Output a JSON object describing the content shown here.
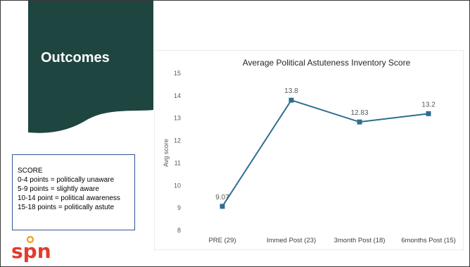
{
  "slide": {
    "title": "Outcomes",
    "colors": {
      "banner": "#1f4540",
      "line": "#2e6e8e",
      "box_border": "#2f5597",
      "logo_red": "#e23b2e",
      "logo_orange": "#f29f1e"
    }
  },
  "score_legend": {
    "heading": "SCORE",
    "lines": [
      "0-4 points = politically unaware",
      "5-9 points = slightly aware",
      "10-14 point = political awareness",
      "15-18 points = politically astute"
    ]
  },
  "logo": {
    "text": "spn",
    "icon": "spn-logo-icon"
  },
  "chart_data": {
    "type": "line",
    "title": "Average Political Astuteness Inventory Score",
    "xlabel": "",
    "ylabel": "Avg score",
    "categories": [
      "PRE (29)",
      "Immed Post (23)",
      "3month Post (18)",
      "6months Post (15)"
    ],
    "series": [
      {
        "values": [
          9.07,
          13.8,
          12.83,
          13.2
        ]
      }
    ],
    "data_labels": [
      "9.07",
      "13.8",
      "12.83",
      "13.2"
    ],
    "ylim": [
      8,
      15
    ],
    "yticks": [
      8,
      9,
      10,
      11,
      12,
      13,
      14,
      15
    ],
    "grid": false,
    "legend": "none"
  }
}
